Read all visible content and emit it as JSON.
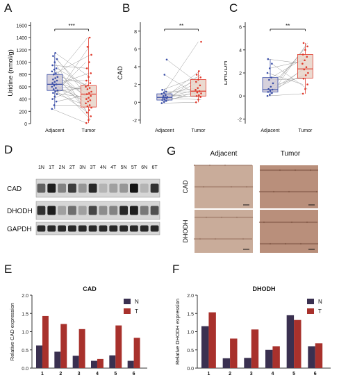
{
  "panels": {
    "a": "A",
    "b": "B",
    "c": "C",
    "d": "D",
    "e": "E",
    "f": "F",
    "g": "G"
  },
  "colors": {
    "adjacent": "#3b4fa8",
    "tumor": "#e0392b",
    "adjBox": "#cfc9d6",
    "tumBox": "#e8d3c8",
    "n_bar": "#3a3050",
    "t_bar": "#a8312c"
  },
  "chart_data": [
    {
      "type": "box",
      "panel": "A",
      "ylabel": "Uridine (nmol/g)",
      "categories": [
        "Adjacent",
        "Tumor"
      ],
      "ylim": [
        0,
        1650
      ],
      "yticks": [
        0,
        200,
        400,
        600,
        800,
        1000,
        1200,
        1400,
        1600
      ],
      "significance": "***",
      "boxes": [
        {
          "name": "Adjacent",
          "q1": 540,
          "median": 640,
          "q3": 800,
          "whisker_low": 240,
          "whisker_high": 1150
        },
        {
          "name": "Tumor",
          "q1": 270,
          "median": 480,
          "q3": 620,
          "whisker_low": 10,
          "whisker_high": 1400
        }
      ],
      "adjacent": [
        240,
        300,
        360,
        400,
        440,
        480,
        500,
        520,
        540,
        560,
        580,
        600,
        620,
        640,
        660,
        680,
        700,
        720,
        740,
        760,
        800,
        820,
        850,
        880,
        900,
        950,
        1000,
        1050,
        1100,
        1150
      ],
      "tumor": [
        10,
        60,
        120,
        180,
        220,
        260,
        280,
        300,
        330,
        360,
        380,
        400,
        420,
        450,
        480,
        500,
        520,
        560,
        580,
        600,
        620,
        660,
        700,
        760,
        820,
        900,
        1000,
        1120,
        1250,
        1400
      ]
    },
    {
      "type": "box",
      "panel": "B",
      "ylabel": "CAD",
      "categories": [
        "Adjacent",
        "Tumor"
      ],
      "ylim": [
        -2.4,
        9
      ],
      "yticks": [
        -2,
        0,
        2,
        4,
        6,
        8
      ],
      "significance": "**",
      "boxes": [
        {
          "name": "Adjacent",
          "q1": 0.25,
          "median": 0.55,
          "q3": 0.95,
          "whisker_low": -0.1,
          "whisker_high": 1.5
        },
        {
          "name": "Tumor",
          "q1": 0.7,
          "median": 1.25,
          "q3": 2.55,
          "whisker_low": 0.0,
          "whisker_high": 3.5
        }
      ],
      "adjacent": [
        -0.1,
        0.05,
        0.15,
        0.25,
        0.35,
        0.45,
        0.5,
        0.55,
        0.6,
        0.7,
        0.8,
        0.95,
        1.1,
        1.2,
        1.4,
        3.1,
        4.8
      ],
      "tumor": [
        0.0,
        0.3,
        0.6,
        0.7,
        0.8,
        1.0,
        1.1,
        1.25,
        1.4,
        1.6,
        1.9,
        2.3,
        2.55,
        2.8,
        3.1,
        3.5,
        6.8
      ]
    },
    {
      "type": "box",
      "panel": "C",
      "ylabel": "DHODH",
      "categories": [
        "Adjacent",
        "Tumor"
      ],
      "ylim": [
        -2.4,
        6.4
      ],
      "yticks": [
        -2,
        0,
        2,
        4,
        6
      ],
      "significance": "**",
      "boxes": [
        {
          "name": "Adjacent",
          "q1": 0.35,
          "median": 0.55,
          "q3": 1.6,
          "whisker_low": 0.0,
          "whisker_high": 3.2
        },
        {
          "name": "Tumor",
          "q1": 1.55,
          "median": 2.35,
          "q3": 3.6,
          "whisker_low": 0.2,
          "whisker_high": 4.6
        }
      ],
      "adjacent": [
        0.0,
        0.1,
        0.25,
        0.35,
        0.45,
        0.55,
        0.6,
        0.8,
        1.1,
        1.4,
        1.6,
        2.0,
        2.4,
        2.8,
        3.2
      ],
      "tumor": [
        0.2,
        0.6,
        1.0,
        1.5,
        1.8,
        2.0,
        2.3,
        2.5,
        2.8,
        3.1,
        3.4,
        3.6,
        4.0,
        4.3,
        4.6
      ]
    },
    {
      "type": "bar",
      "panel": "E",
      "title": "CAD",
      "ylabel": "Relative CAD  expression",
      "categories": [
        "1",
        "2",
        "3",
        "4",
        "5",
        "6"
      ],
      "ylim": [
        0,
        2.0
      ],
      "yticks": [
        "0.0",
        "0.5",
        "1.0",
        "1.5",
        "2.0"
      ],
      "series": [
        {
          "name": "N",
          "values": [
            0.62,
            0.45,
            0.34,
            0.2,
            0.35,
            0.2
          ]
        },
        {
          "name": "T",
          "values": [
            1.43,
            1.21,
            1.07,
            0.25,
            1.17,
            0.83
          ]
        }
      ]
    },
    {
      "type": "bar",
      "panel": "F",
      "title": "DHODH",
      "ylabel": "Relative DHODH expression",
      "categories": [
        "1",
        "2",
        "3",
        "4",
        "5",
        "6"
      ],
      "ylim": [
        0,
        2.0
      ],
      "yticks": [
        "0.0",
        "0.5",
        "1.0",
        "1.5",
        "2.0"
      ],
      "series": [
        {
          "name": "N",
          "values": [
            1.15,
            0.27,
            0.28,
            0.5,
            1.45,
            0.6
          ]
        },
        {
          "name": "T",
          "values": [
            1.53,
            0.81,
            1.06,
            0.6,
            1.32,
            0.68
          ]
        }
      ]
    }
  ],
  "blot": {
    "lanes": [
      "1N",
      "1T",
      "2N",
      "2T",
      "3N",
      "3T",
      "4N",
      "4T",
      "5N",
      "5T",
      "6N",
      "6T"
    ],
    "rows": [
      {
        "label": "CAD",
        "intensity": [
          0.62,
          0.95,
          0.45,
          0.8,
          0.35,
          0.9,
          0.2,
          0.3,
          0.35,
          1.0,
          0.2,
          0.85
        ]
      },
      {
        "label": "DHODH",
        "intensity": [
          0.85,
          0.95,
          0.3,
          0.55,
          0.3,
          0.75,
          0.4,
          0.45,
          0.9,
          0.95,
          0.5,
          0.7
        ]
      },
      {
        "label": "GAPDH",
        "intensity": [
          0.9,
          0.9,
          0.9,
          0.9,
          0.9,
          0.9,
          0.9,
          0.9,
          0.9,
          0.9,
          0.9,
          0.9
        ]
      }
    ]
  },
  "ihc": {
    "columns": [
      "Adjacent",
      "Tumor"
    ],
    "rows": [
      "CAD",
      "DHODH"
    ]
  }
}
